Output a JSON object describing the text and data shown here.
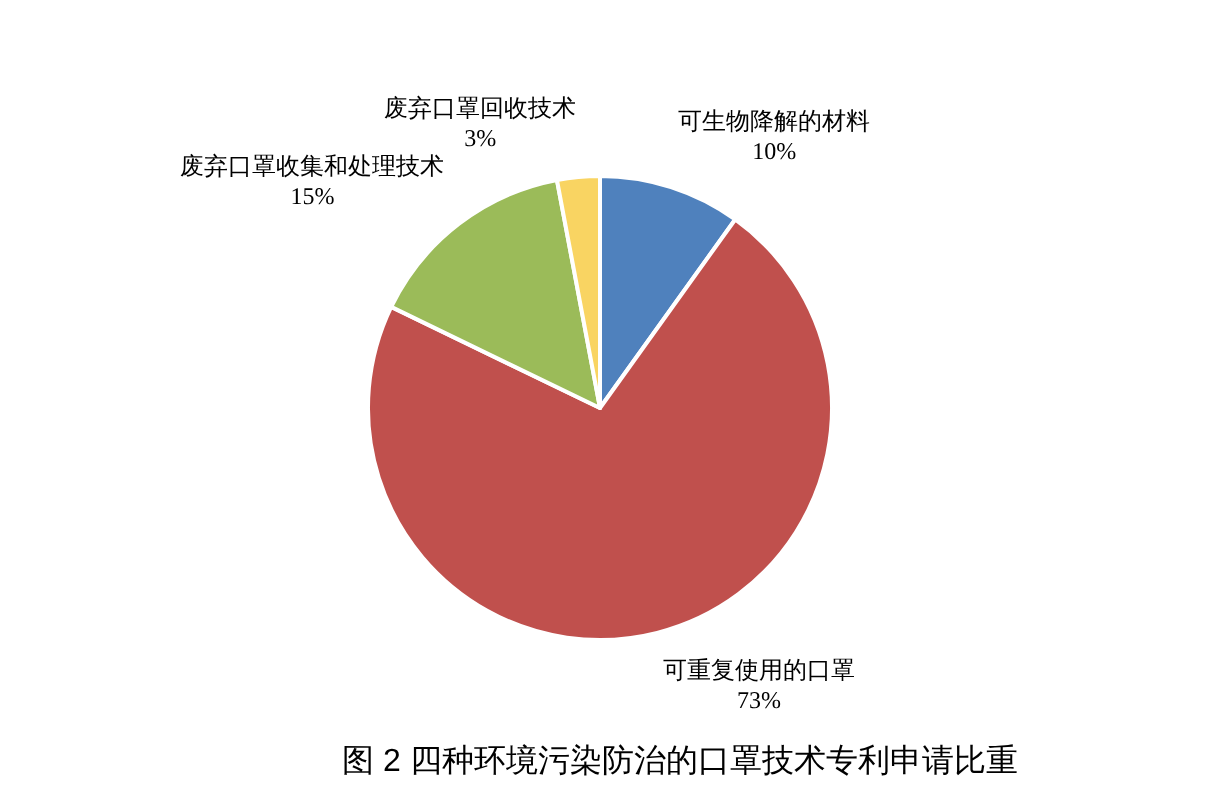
{
  "chart_data": {
    "type": "pie",
    "title": "图 2 四种环境污染防治的口罩技术专利申请比重",
    "categories": [
      "可生物降解的材料",
      "可重复使用的口罩",
      "废弃口罩收集和处理技术",
      "废弃口罩回收技术"
    ],
    "values": [
      10,
      73,
      15,
      3
    ],
    "value_labels": [
      "10%",
      "73%",
      "15%",
      "3%"
    ],
    "colors": [
      "#4f81bd",
      "#c0504d",
      "#9bbb59",
      "#f9d462"
    ],
    "legend": false
  }
}
